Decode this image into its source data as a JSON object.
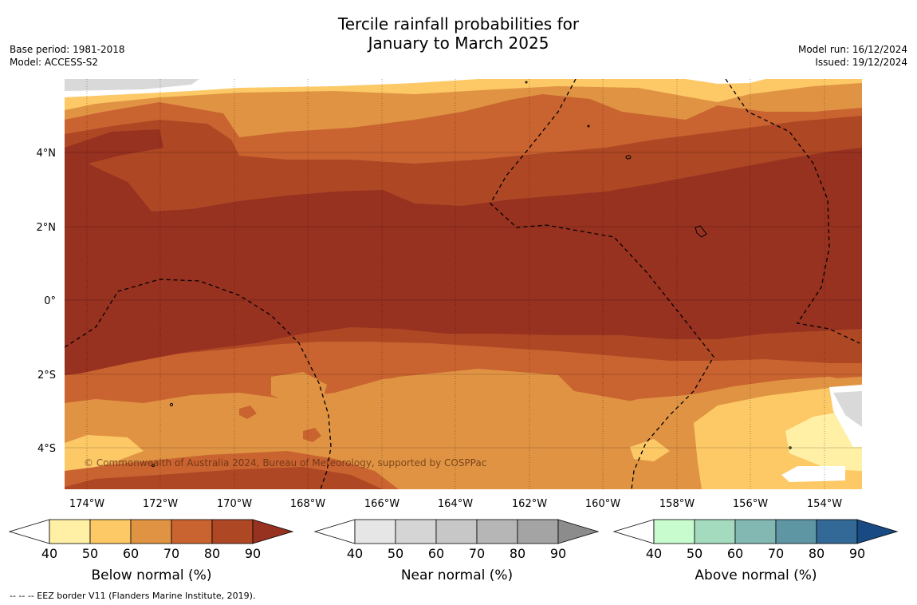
{
  "title_line1": "Tercile rainfall probabilities for",
  "title_line2": "January to March 2025",
  "base_period": "Base period: 1981-2018",
  "model": "Model: ACCESS-S2",
  "model_run": "Model run: 16/12/2024",
  "issued": "Issued: 19/12/2024",
  "copyright": "© Commonwealth of Australia 2024, Bureau of Meteorology, supported by COSPPac",
  "footer": "-- -- -- EEZ border V11 (Flanders Marine Institute, 2019).",
  "lon_ticks": [
    "174°W",
    "172°W",
    "170°W",
    "168°W",
    "166°W",
    "164°W",
    "162°W",
    "160°W",
    "158°W",
    "156°W",
    "154°W"
  ],
  "lat_ticks": [
    "4°N",
    "2°N",
    "0°",
    "2°S",
    "4°S"
  ],
  "colorbars": [
    {
      "label": "Below normal (%)",
      "ticks": [
        "40",
        "50",
        "60",
        "70",
        "80",
        "90"
      ],
      "colors": [
        "#fff0a6",
        "#fdc966",
        "#e09443",
        "#c96330",
        "#ae4724",
        "#973120"
      ]
    },
    {
      "label": "Near normal (%)",
      "ticks": [
        "40",
        "50",
        "60",
        "70",
        "80",
        "90"
      ],
      "colors": [
        "#e6e6e6",
        "#d5d5d5",
        "#c7c7c7",
        "#b6b6b6",
        "#a4a4a4",
        "#8c8c8c"
      ]
    },
    {
      "label": "Above normal (%)",
      "ticks": [
        "40",
        "50",
        "60",
        "70",
        "80",
        "90"
      ],
      "colors": [
        "#c8fbcd",
        "#a4dabd",
        "#83b7b2",
        "#5e96a3",
        "#336997",
        "#1a4a83"
      ]
    }
  ]
}
